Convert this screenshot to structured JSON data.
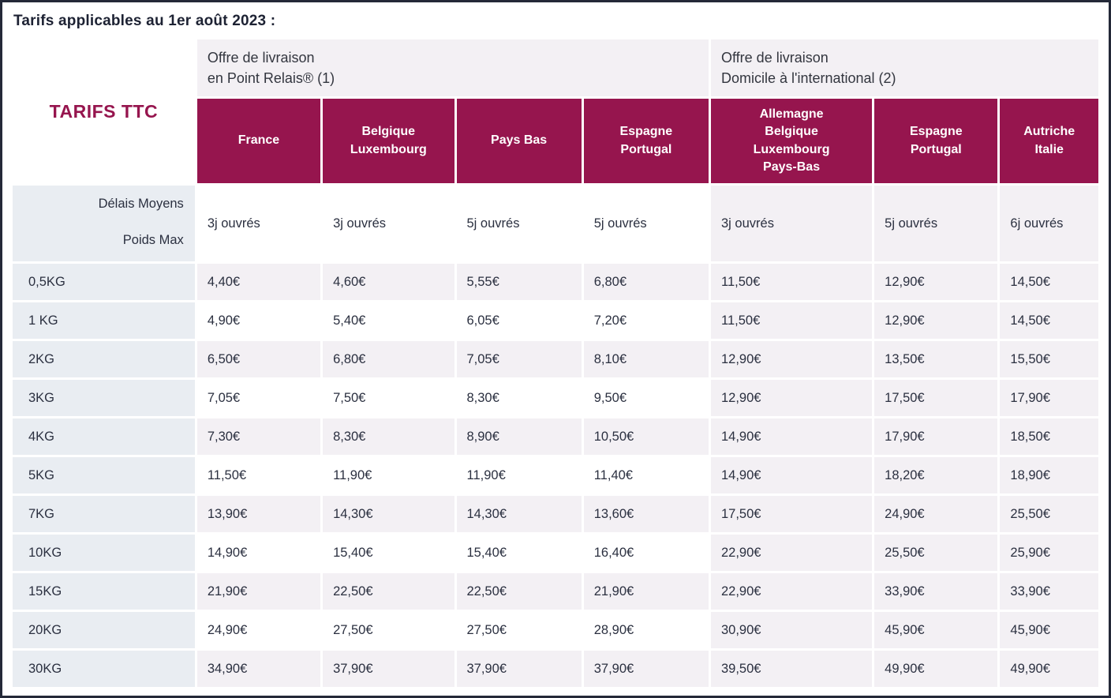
{
  "title": "Tarifs applicables au 1er août 2023 :",
  "colors": {
    "accent_maroon": "#96154e",
    "weight_column_bg": "#e9edf2",
    "alt_row_bg": "#f3f0f4",
    "header_text": "#ffffff",
    "body_text": "#2b3040",
    "page_border": "#242938"
  },
  "table": {
    "corner_label": "TARIFS TTC",
    "groups": [
      {
        "label": "Offre de livraison\nen Point Relais® (1)"
      },
      {
        "label": "Offre de livraison\nDomicile à l'international (2)"
      }
    ],
    "delays_header": {
      "line1": "Délais Moyens",
      "line2": "Poids Max"
    },
    "columns": [
      {
        "label": "France",
        "delay": "3j ouvrés"
      },
      {
        "label": "Belgique\nLuxembourg",
        "delay": "3j ouvrés"
      },
      {
        "label": "Pays Bas",
        "delay": "5j ouvrés"
      },
      {
        "label": "Espagne\nPortugal",
        "delay": "5j ouvrés"
      },
      {
        "label": "Allemagne\nBelgique\nLuxembourg\nPays-Bas",
        "delay": "3j ouvrés"
      },
      {
        "label": "Espagne\nPortugal",
        "delay": "5j ouvrés"
      },
      {
        "label": "Autriche\nItalie",
        "delay": "6j ouvrés"
      }
    ],
    "rows": [
      {
        "weight": "0,5KG",
        "prices": [
          "4,40€",
          "4,60€",
          "5,55€",
          "6,80€",
          "11,50€",
          "12,90€",
          "14,50€"
        ]
      },
      {
        "weight": "1 KG",
        "prices": [
          "4,90€",
          "5,40€",
          "6,05€",
          "7,20€",
          "11,50€",
          "12,90€",
          "14,50€"
        ]
      },
      {
        "weight": "2KG",
        "prices": [
          "6,50€",
          "6,80€",
          "7,05€",
          "8,10€",
          "12,90€",
          "13,50€",
          "15,50€"
        ]
      },
      {
        "weight": "3KG",
        "prices": [
          "7,05€",
          "7,50€",
          "8,30€",
          "9,50€",
          "12,90€",
          "17,50€",
          "17,90€"
        ]
      },
      {
        "weight": "4KG",
        "prices": [
          "7,30€",
          "8,30€",
          "8,90€",
          "10,50€",
          "14,90€",
          "17,90€",
          "18,50€"
        ]
      },
      {
        "weight": "5KG",
        "prices": [
          "11,50€",
          "11,90€",
          "11,90€",
          "11,40€",
          "14,90€",
          "18,20€",
          "18,90€"
        ]
      },
      {
        "weight": "7KG",
        "prices": [
          "13,90€",
          "14,30€",
          "14,30€",
          "13,60€",
          "17,50€",
          "24,90€",
          "25,50€"
        ]
      },
      {
        "weight": "10KG",
        "prices": [
          "14,90€",
          "15,40€",
          "15,40€",
          "16,40€",
          "22,90€",
          "25,50€",
          "25,90€"
        ]
      },
      {
        "weight": "15KG",
        "prices": [
          "21,90€",
          "22,50€",
          "22,50€",
          "21,90€",
          "22,90€",
          "33,90€",
          "33,90€"
        ]
      },
      {
        "weight": "20KG",
        "prices": [
          "24,90€",
          "27,50€",
          "27,50€",
          "28,90€",
          "30,90€",
          "45,90€",
          "45,90€"
        ]
      },
      {
        "weight": "30KG",
        "prices": [
          "34,90€",
          "37,90€",
          "37,90€",
          "37,90€",
          "39,50€",
          "49,90€",
          "49,90€"
        ]
      }
    ]
  }
}
